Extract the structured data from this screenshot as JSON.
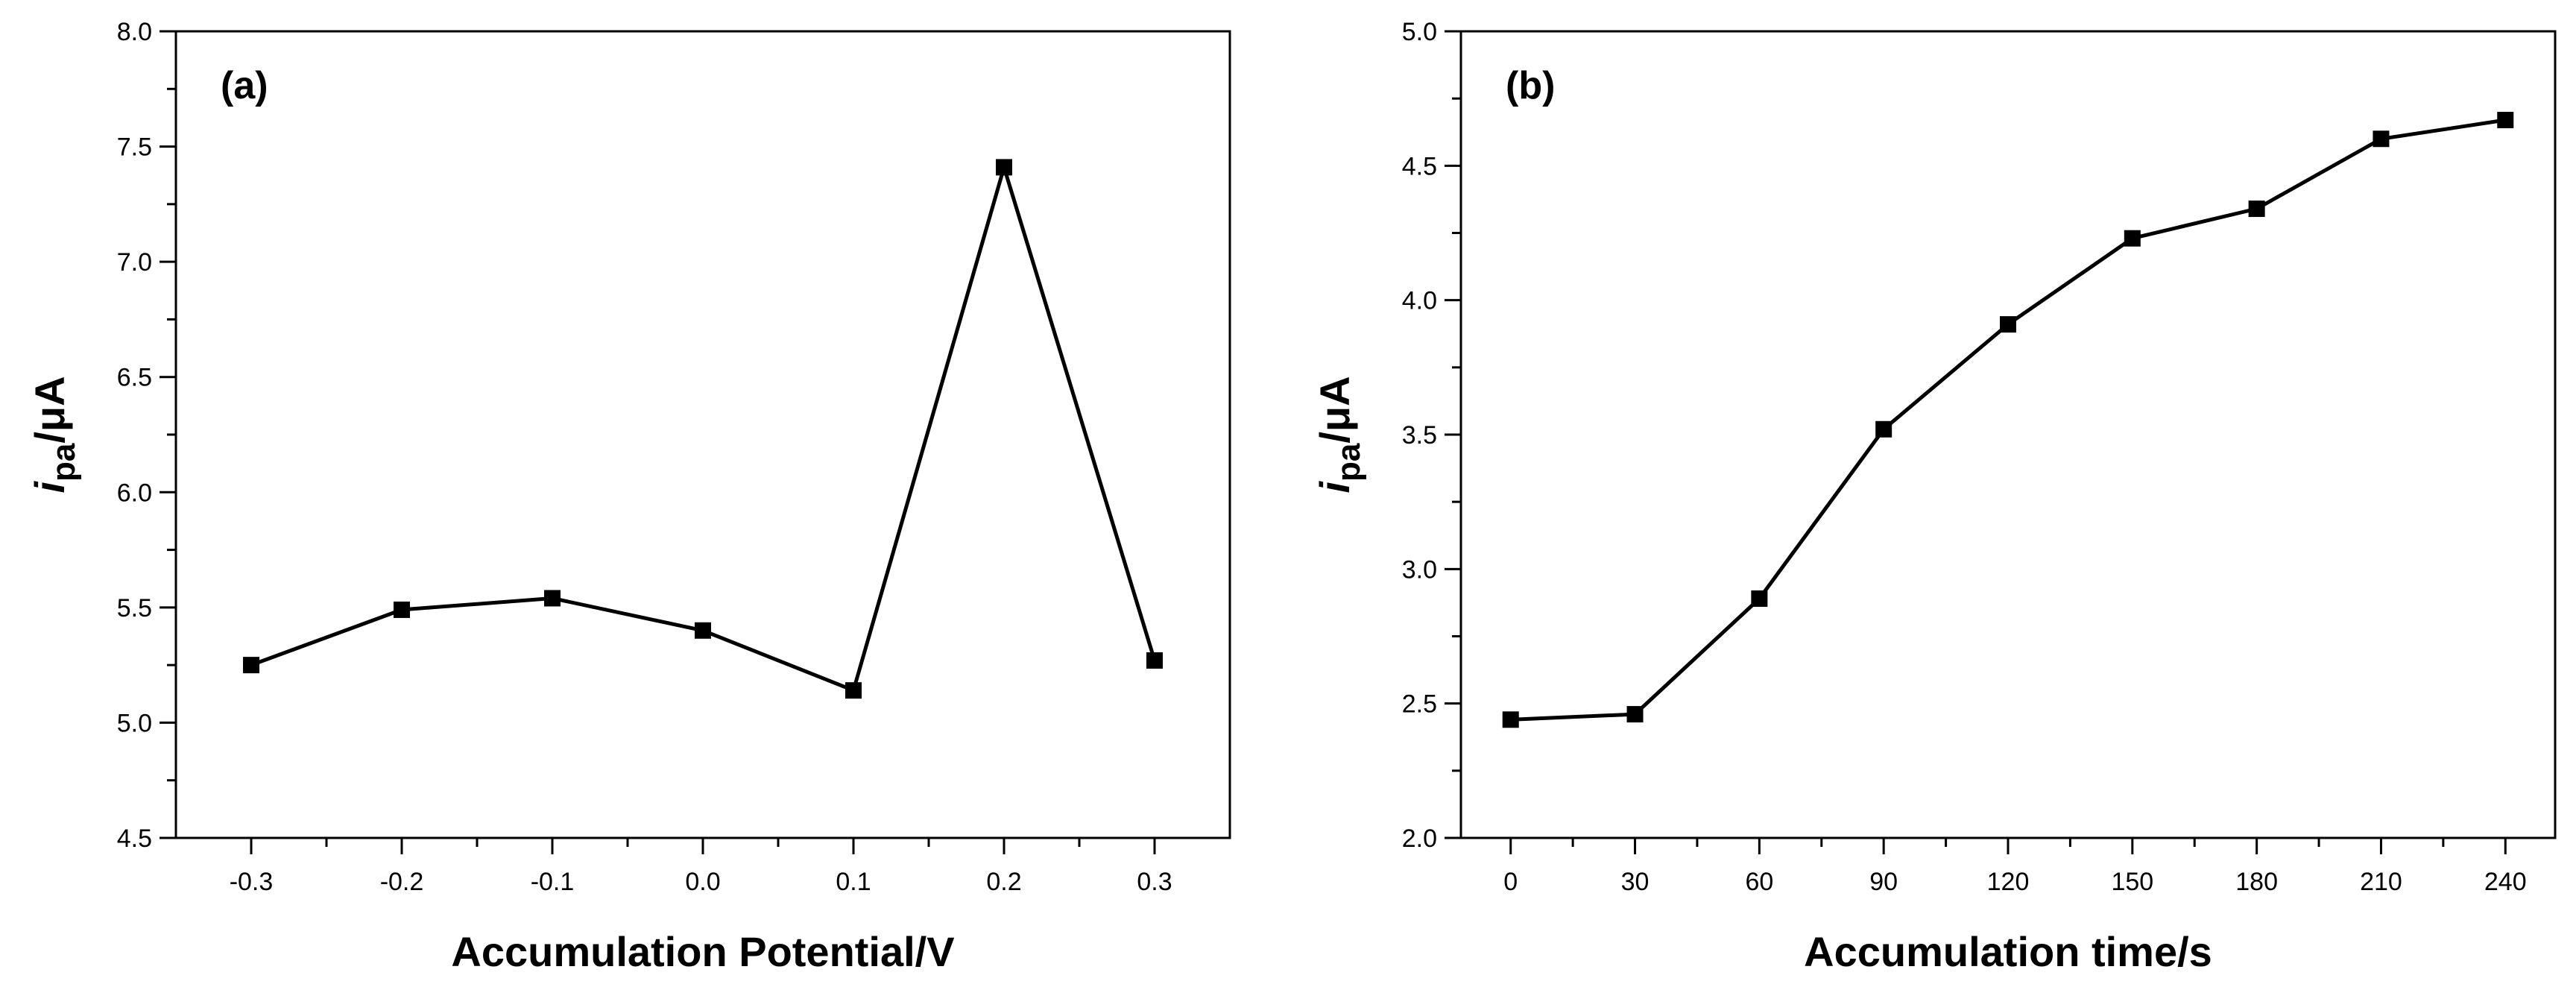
{
  "chart_data": [
    {
      "type": "line",
      "panel_label": "(a)",
      "x": [
        -0.3,
        -0.2,
        -0.1,
        0.0,
        0.1,
        0.2,
        0.3
      ],
      "series": [
        {
          "name": "ipa",
          "values": [
            5.25,
            5.49,
            5.54,
            5.4,
            5.14,
            7.41,
            5.27
          ]
        }
      ],
      "xlabel": "Accumulation Potential/V",
      "ylabel": {
        "var": "i",
        "sub": "pa",
        "unit": "/μA"
      },
      "xlim": [
        -0.35,
        0.35
      ],
      "ylim": [
        4.5,
        8.0
      ],
      "xticks": [
        -0.3,
        -0.2,
        -0.1,
        0.0,
        0.1,
        0.2,
        0.3
      ],
      "xtick_labels": [
        "-0.3",
        "-0.2",
        "-0.1",
        "0.0",
        "0.1",
        "0.2",
        "0.3"
      ],
      "yticks": [
        4.5,
        5.0,
        5.5,
        6.0,
        6.5,
        7.0,
        7.5,
        8.0
      ],
      "ytick_labels": [
        "4.5",
        "5.0",
        "5.5",
        "6.0",
        "6.5",
        "7.0",
        "7.5",
        "8.0"
      ],
      "marker": "square",
      "grid": false
    },
    {
      "type": "line",
      "panel_label": "(b)",
      "x": [
        0,
        30,
        60,
        90,
        120,
        150,
        180,
        210,
        240
      ],
      "series": [
        {
          "name": "ipa",
          "values": [
            2.44,
            2.46,
            2.89,
            3.52,
            3.91,
            4.23,
            4.34,
            4.6,
            4.67
          ]
        }
      ],
      "xlabel": "Accumulation time/s",
      "ylabel": {
        "var": "i",
        "sub": "pa",
        "unit": "/μA"
      },
      "xlim": [
        -12,
        252
      ],
      "ylim": [
        2.0,
        5.0
      ],
      "xticks": [
        0,
        30,
        60,
        90,
        120,
        150,
        180,
        210,
        240
      ],
      "xtick_labels": [
        "0",
        "30",
        "60",
        "90",
        "120",
        "150",
        "180",
        "210",
        "240"
      ],
      "yticks": [
        2.0,
        2.5,
        3.0,
        3.5,
        4.0,
        4.5,
        5.0
      ],
      "ytick_labels": [
        "2.0",
        "2.5",
        "3.0",
        "3.5",
        "4.0",
        "4.5",
        "5.0"
      ],
      "marker": "square",
      "grid": false
    }
  ]
}
